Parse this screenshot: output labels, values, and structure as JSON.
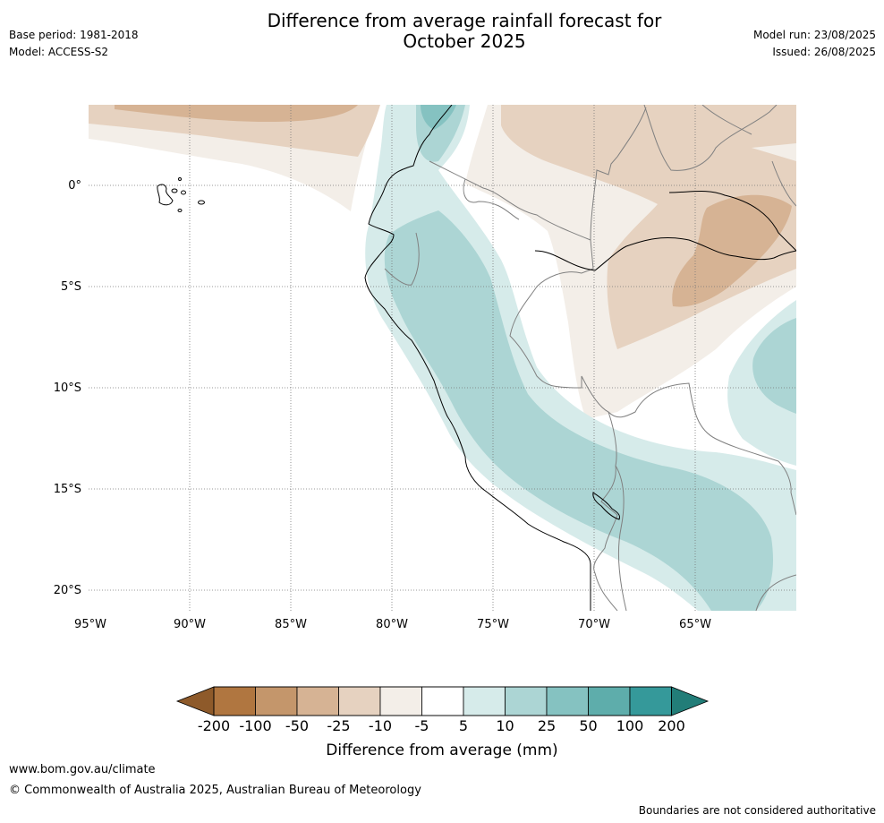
{
  "title": {
    "line1": "Difference from average rainfall forecast for",
    "line2": "October 2025"
  },
  "meta": {
    "base_period": "Base period: 1981-2018",
    "model": "Model: ACCESS-S2",
    "model_run": "Model run: 23/08/2025",
    "issued": "Issued: 26/08/2025"
  },
  "map": {
    "lon_ticks": [
      "95°W",
      "90°W",
      "85°W",
      "80°W",
      "75°W",
      "70°W",
      "65°W"
    ],
    "lat_ticks": [
      "0°",
      "5°S",
      "10°S",
      "15°S",
      "20°S"
    ],
    "lon_extent": [
      -95,
      -60
    ],
    "lat_extent": [
      -21,
      4
    ]
  },
  "colorbar": {
    "title": "Difference from average (mm)",
    "labels": [
      "-200",
      "-100",
      "-50",
      "-25",
      "-10",
      "-5",
      "5",
      "10",
      "25",
      "50",
      "100",
      "200"
    ],
    "colors": {
      "extend_low": "#8e5a2a",
      "bins": [
        "#b07640",
        "#c4966b",
        "#d6b394",
        "#e6d2c0",
        "#f3eee8",
        "#ffffff",
        "#d6ebea",
        "#acd5d4",
        "#85c2c1",
        "#5eadab",
        "#35999a"
      ],
      "extend_high": "#227d78"
    }
  },
  "footer": {
    "url": "www.bom.gov.au/climate",
    "copyright": "© Commonwealth of Australia 2025, Australian Bureau of Meteorology",
    "note": "Boundaries are not considered authoritative"
  }
}
